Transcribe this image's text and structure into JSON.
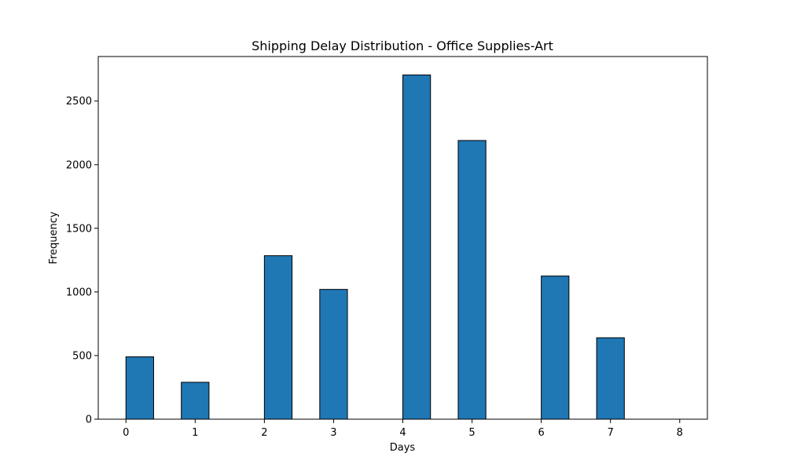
{
  "chart_data": {
    "type": "bar",
    "title": "Shipping Delay Distribution - Office Supplies-Art",
    "xlabel": "Days",
    "ylabel": "Frequency",
    "xlim": [
      -0.4,
      8.4
    ],
    "ylim": [
      0,
      2850
    ],
    "xticks": [
      0,
      1,
      2,
      3,
      4,
      5,
      6,
      7,
      8
    ],
    "yticks": [
      0,
      500,
      1000,
      1500,
      2000,
      2500
    ],
    "bins": [
      {
        "start": 0.0,
        "end": 0.4,
        "value": 490
      },
      {
        "start": 0.8,
        "end": 1.2,
        "value": 290
      },
      {
        "start": 2.0,
        "end": 2.4,
        "value": 1285
      },
      {
        "start": 2.8,
        "end": 3.2,
        "value": 1020
      },
      {
        "start": 4.0,
        "end": 4.4,
        "value": 2705
      },
      {
        "start": 4.8,
        "end": 5.2,
        "value": 2190
      },
      {
        "start": 6.0,
        "end": 6.4,
        "value": 1125
      },
      {
        "start": 6.8,
        "end": 7.2,
        "value": 640
      }
    ],
    "bar_color": "#1f77b4",
    "edge_color": "#000000",
    "grid": false,
    "legend": "none"
  }
}
